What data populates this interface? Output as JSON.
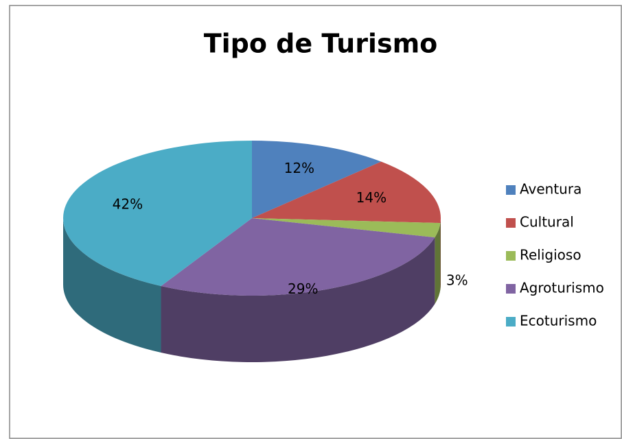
{
  "chart_data": {
    "type": "pie",
    "title": "Tipo de Turismo",
    "categories": [
      "Aventura",
      "Cultural",
      "Religioso",
      "Agroturismo",
      "Ecoturismo"
    ],
    "values": [
      12,
      14,
      3,
      29,
      42
    ],
    "value_labels": [
      "12%",
      "14%",
      "3%",
      "29%",
      "42%"
    ],
    "colors": [
      "#4f81bd",
      "#c0504d",
      "#9bbb59",
      "#8064a2",
      "#4bacc6"
    ],
    "legend": "right",
    "three_d": true
  }
}
